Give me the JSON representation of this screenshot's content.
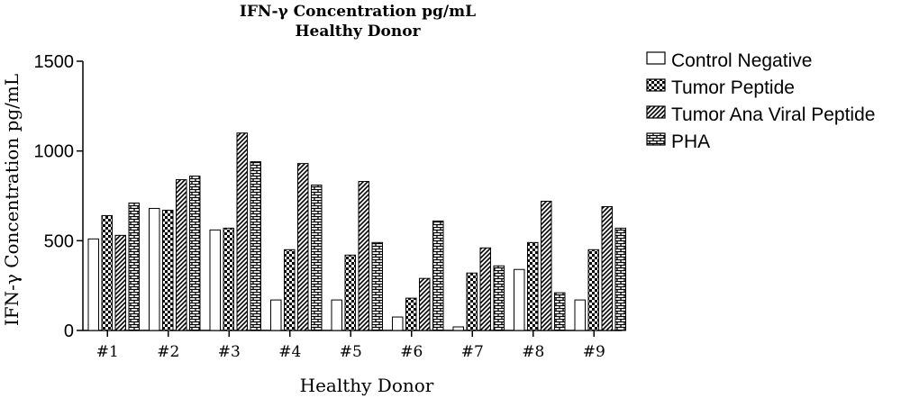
{
  "chart_data": {
    "type": "bar",
    "title": "IFN-γ Concentration pg/mL",
    "subtitle": "Healthy Donor",
    "xlabel": "Healthy Donor",
    "ylabel": "IFN-γ Concentration pg/mL",
    "ylim": [
      0,
      1500
    ],
    "yticks": [
      "0",
      "500",
      "1000",
      "1500"
    ],
    "legend_position": "top-right",
    "categories": [
      "#1",
      "#2",
      "#3",
      "#4",
      "#5",
      "#6",
      "#7",
      "#8",
      "#9"
    ],
    "series": [
      {
        "name": "Control Negative",
        "pattern": "blank",
        "values": [
          510,
          680,
          560,
          170,
          170,
          75,
          20,
          340,
          170
        ]
      },
      {
        "name": "Tumor Peptide",
        "pattern": "checker",
        "values": [
          640,
          670,
          570,
          450,
          420,
          180,
          320,
          490,
          450
        ]
      },
      {
        "name": "Tumor Ana Viral Peptide",
        "pattern": "diagonal",
        "values": [
          530,
          840,
          1100,
          930,
          830,
          290,
          460,
          720,
          690
        ]
      },
      {
        "name": "PHA",
        "pattern": "brick",
        "values": [
          710,
          860,
          940,
          810,
          490,
          610,
          360,
          210,
          570
        ]
      }
    ]
  }
}
